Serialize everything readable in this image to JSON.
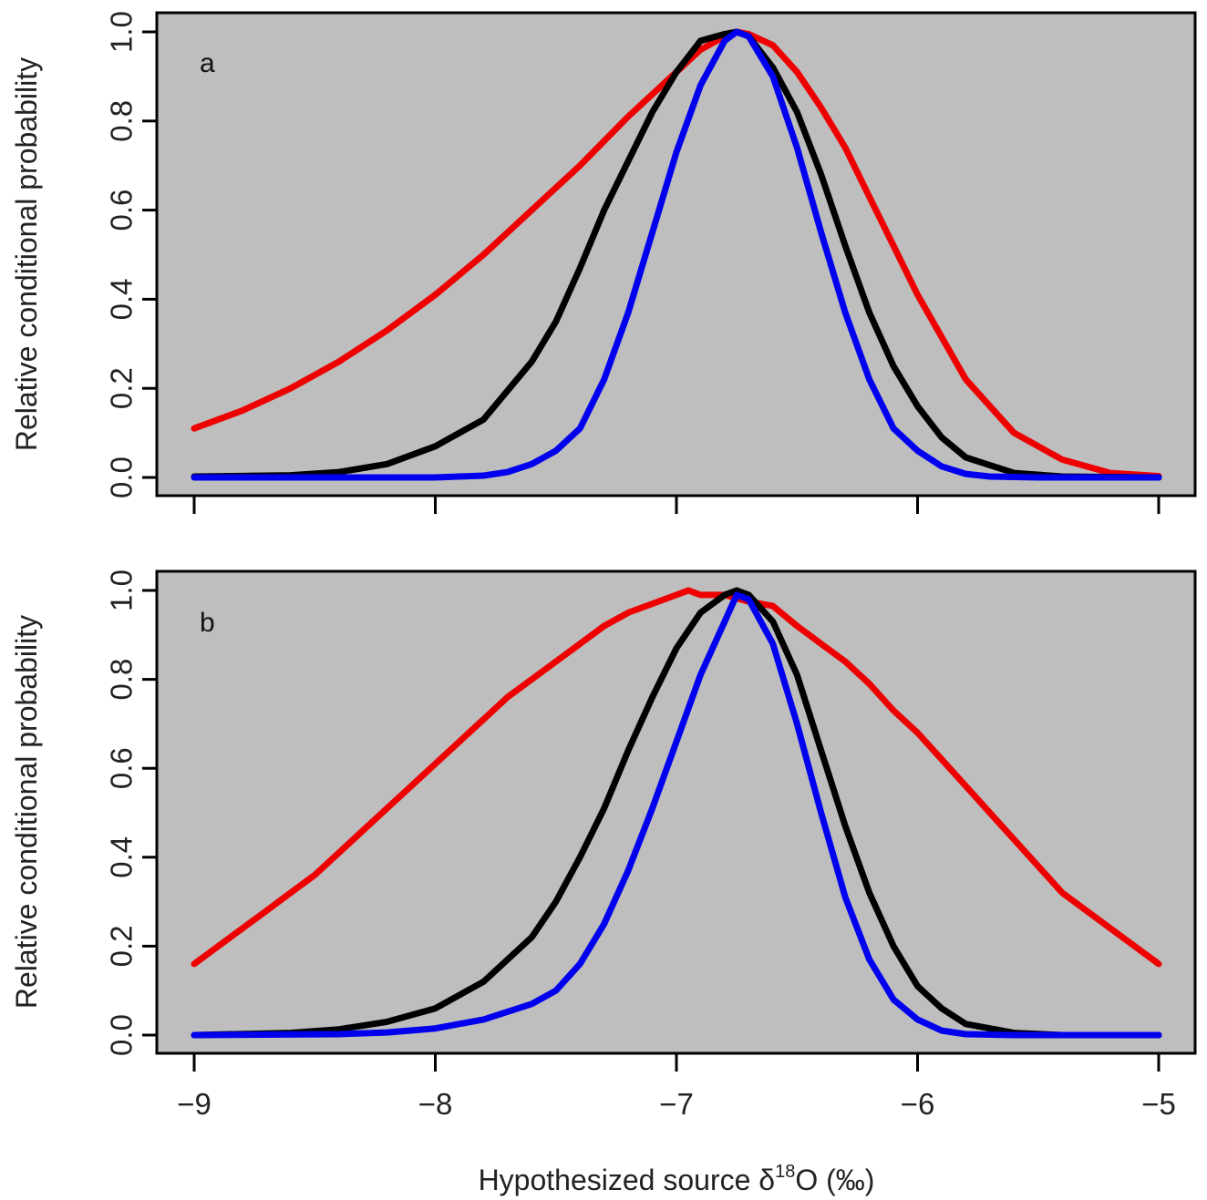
{
  "figure": {
    "xlabel": "Hypothesized source δ18O (‰)",
    "xlabel_base": "Hypothesized source δ",
    "xlabel_sup": "18",
    "xlabel_tail": "O (‰)",
    "ylabel": "Relative conditional probability"
  },
  "colors": {
    "panel_background": "#bebebe",
    "black_series": "#000000",
    "blue_series": "#0000ee",
    "red_series": "#ee0000"
  },
  "chart_data": [
    {
      "type": "line",
      "panel_label": "a",
      "xlabel": "",
      "ylabel": "Relative conditional probability",
      "xlim": [
        -9,
        -5
      ],
      "ylim": [
        0,
        1
      ],
      "xticks": [
        "−9",
        "−8",
        "−7",
        "−6",
        "−5"
      ],
      "xticks_values": [
        -9,
        -8,
        -7,
        -6,
        -5
      ],
      "yticks": [
        "0.0",
        "0.2",
        "0.4",
        "0.6",
        "0.8",
        "1.0"
      ],
      "yticks_values": [
        0,
        0.2,
        0.4,
        0.6,
        0.8,
        1.0
      ],
      "grid": false,
      "legend": "none",
      "series": [
        {
          "color": "#ee0000",
          "points": [
            [
              -9,
              0.11
            ],
            [
              -8.8,
              0.15
            ],
            [
              -8.6,
              0.2
            ],
            [
              -8.4,
              0.26
            ],
            [
              -8.2,
              0.33
            ],
            [
              -8,
              0.41
            ],
            [
              -7.8,
              0.5
            ],
            [
              -7.6,
              0.6
            ],
            [
              -7.4,
              0.7
            ],
            [
              -7.2,
              0.81
            ],
            [
              -7.0,
              0.91
            ],
            [
              -6.9,
              0.96
            ],
            [
              -6.8,
              0.99
            ],
            [
              -6.75,
              1.0
            ],
            [
              -6.7,
              0.995
            ],
            [
              -6.6,
              0.97
            ],
            [
              -6.5,
              0.91
            ],
            [
              -6.4,
              0.83
            ],
            [
              -6.3,
              0.74
            ],
            [
              -6.2,
              0.63
            ],
            [
              -6.1,
              0.52
            ],
            [
              -6.0,
              0.41
            ],
            [
              -5.8,
              0.22
            ],
            [
              -5.6,
              0.1
            ],
            [
              -5.4,
              0.04
            ],
            [
              -5.2,
              0.01
            ],
            [
              -5,
              0.003
            ]
          ]
        },
        {
          "color": "#000000",
          "points": [
            [
              -9,
              0.002
            ],
            [
              -8.6,
              0.005
            ],
            [
              -8.4,
              0.012
            ],
            [
              -8.2,
              0.03
            ],
            [
              -8.0,
              0.07
            ],
            [
              -7.8,
              0.13
            ],
            [
              -7.6,
              0.26
            ],
            [
              -7.5,
              0.35
            ],
            [
              -7.4,
              0.47
            ],
            [
              -7.3,
              0.6
            ],
            [
              -7.2,
              0.71
            ],
            [
              -7.1,
              0.82
            ],
            [
              -7.0,
              0.91
            ],
            [
              -6.9,
              0.98
            ],
            [
              -6.8,
              0.995
            ],
            [
              -6.75,
              1.0
            ],
            [
              -6.7,
              0.99
            ],
            [
              -6.6,
              0.92
            ],
            [
              -6.5,
              0.82
            ],
            [
              -6.4,
              0.68
            ],
            [
              -6.3,
              0.52
            ],
            [
              -6.2,
              0.37
            ],
            [
              -6.1,
              0.25
            ],
            [
              -6.0,
              0.16
            ],
            [
              -5.9,
              0.09
            ],
            [
              -5.8,
              0.045
            ],
            [
              -5.6,
              0.01
            ],
            [
              -5.4,
              0.002
            ],
            [
              -5,
              0.0
            ]
          ]
        },
        {
          "color": "#0000ee",
          "points": [
            [
              -9,
              0.0
            ],
            [
              -8,
              0.0
            ],
            [
              -7.8,
              0.004
            ],
            [
              -7.7,
              0.012
            ],
            [
              -7.6,
              0.03
            ],
            [
              -7.5,
              0.06
            ],
            [
              -7.4,
              0.11
            ],
            [
              -7.3,
              0.22
            ],
            [
              -7.2,
              0.37
            ],
            [
              -7.1,
              0.55
            ],
            [
              -7.0,
              0.73
            ],
            [
              -6.9,
              0.88
            ],
            [
              -6.8,
              0.98
            ],
            [
              -6.75,
              1.0
            ],
            [
              -6.7,
              0.99
            ],
            [
              -6.6,
              0.9
            ],
            [
              -6.5,
              0.74
            ],
            [
              -6.4,
              0.55
            ],
            [
              -6.3,
              0.37
            ],
            [
              -6.2,
              0.22
            ],
            [
              -6.1,
              0.11
            ],
            [
              -6.0,
              0.06
            ],
            [
              -5.9,
              0.025
            ],
            [
              -5.8,
              0.008
            ],
            [
              -5.7,
              0.002
            ],
            [
              -5.5,
              0.0
            ],
            [
              -5,
              0.0
            ]
          ]
        }
      ]
    },
    {
      "type": "line",
      "panel_label": "b",
      "xlabel": "Hypothesized source δ18O (‰)",
      "ylabel": "Relative conditional probability",
      "xlim": [
        -9,
        -5
      ],
      "ylim": [
        0,
        1
      ],
      "xticks": [
        "−9",
        "−8",
        "−7",
        "−6",
        "−5"
      ],
      "xticks_values": [
        -9,
        -8,
        -7,
        -6,
        -5
      ],
      "yticks": [
        "0.0",
        "0.2",
        "0.4",
        "0.6",
        "0.8",
        "1.0"
      ],
      "yticks_values": [
        0,
        0.2,
        0.4,
        0.6,
        0.8,
        1.0
      ],
      "grid": false,
      "legend": "none",
      "series": [
        {
          "color": "#ee0000",
          "points": [
            [
              -9,
              0.16
            ],
            [
              -8.9,
              0.2
            ],
            [
              -8.8,
              0.24
            ],
            [
              -8.7,
              0.28
            ],
            [
              -8.6,
              0.32
            ],
            [
              -8.5,
              0.36
            ],
            [
              -8.4,
              0.41
            ],
            [
              -8.3,
              0.46
            ],
            [
              -8.2,
              0.51
            ],
            [
              -8.1,
              0.56
            ],
            [
              -8.0,
              0.61
            ],
            [
              -7.9,
              0.66
            ],
            [
              -7.8,
              0.71
            ],
            [
              -7.7,
              0.76
            ],
            [
              -7.6,
              0.8
            ],
            [
              -7.5,
              0.84
            ],
            [
              -7.4,
              0.88
            ],
            [
              -7.3,
              0.92
            ],
            [
              -7.2,
              0.95
            ],
            [
              -7.1,
              0.97
            ],
            [
              -7.0,
              0.99
            ],
            [
              -6.95,
              1.0
            ],
            [
              -6.9,
              0.99
            ],
            [
              -6.8,
              0.99
            ],
            [
              -6.7,
              0.975
            ],
            [
              -6.6,
              0.965
            ],
            [
              -6.5,
              0.92
            ],
            [
              -6.4,
              0.88
            ],
            [
              -6.3,
              0.84
            ],
            [
              -6.2,
              0.79
            ],
            [
              -6.1,
              0.73
            ],
            [
              -6.0,
              0.68
            ],
            [
              -5.9,
              0.62
            ],
            [
              -5.8,
              0.56
            ],
            [
              -5.7,
              0.5
            ],
            [
              -5.6,
              0.44
            ],
            [
              -5.5,
              0.38
            ],
            [
              -5.4,
              0.32
            ],
            [
              -5.3,
              0.28
            ],
            [
              -5.2,
              0.24
            ],
            [
              -5.1,
              0.2
            ],
            [
              -5.0,
              0.16
            ]
          ]
        },
        {
          "color": "#000000",
          "points": [
            [
              -9,
              0.0
            ],
            [
              -8.6,
              0.005
            ],
            [
              -8.4,
              0.013
            ],
            [
              -8.2,
              0.03
            ],
            [
              -8.0,
              0.06
            ],
            [
              -7.8,
              0.12
            ],
            [
              -7.6,
              0.22
            ],
            [
              -7.5,
              0.3
            ],
            [
              -7.4,
              0.4
            ],
            [
              -7.3,
              0.51
            ],
            [
              -7.2,
              0.64
            ],
            [
              -7.1,
              0.76
            ],
            [
              -7.0,
              0.87
            ],
            [
              -6.9,
              0.95
            ],
            [
              -6.8,
              0.99
            ],
            [
              -6.75,
              1.0
            ],
            [
              -6.7,
              0.99
            ],
            [
              -6.6,
              0.93
            ],
            [
              -6.5,
              0.81
            ],
            [
              -6.4,
              0.64
            ],
            [
              -6.3,
              0.47
            ],
            [
              -6.2,
              0.32
            ],
            [
              -6.1,
              0.2
            ],
            [
              -6.0,
              0.11
            ],
            [
              -5.9,
              0.06
            ],
            [
              -5.8,
              0.025
            ],
            [
              -5.6,
              0.005
            ],
            [
              -5.4,
              0.0
            ],
            [
              -5,
              0.0
            ]
          ]
        },
        {
          "color": "#0000ee",
          "points": [
            [
              -9,
              0.0
            ],
            [
              -8.4,
              0.002
            ],
            [
              -8.2,
              0.006
            ],
            [
              -8.0,
              0.015
            ],
            [
              -7.8,
              0.035
            ],
            [
              -7.6,
              0.07
            ],
            [
              -7.5,
              0.1
            ],
            [
              -7.4,
              0.16
            ],
            [
              -7.3,
              0.25
            ],
            [
              -7.2,
              0.37
            ],
            [
              -7.1,
              0.51
            ],
            [
              -7.0,
              0.66
            ],
            [
              -6.9,
              0.81
            ],
            [
              -6.8,
              0.93
            ],
            [
              -6.75,
              0.99
            ],
            [
              -6.7,
              0.98
            ],
            [
              -6.6,
              0.88
            ],
            [
              -6.5,
              0.7
            ],
            [
              -6.4,
              0.5
            ],
            [
              -6.3,
              0.31
            ],
            [
              -6.2,
              0.17
            ],
            [
              -6.1,
              0.08
            ],
            [
              -6.0,
              0.035
            ],
            [
              -5.9,
              0.01
            ],
            [
              -5.8,
              0.002
            ],
            [
              -5.6,
              0.0
            ],
            [
              -5,
              0.0
            ]
          ]
        }
      ]
    }
  ]
}
